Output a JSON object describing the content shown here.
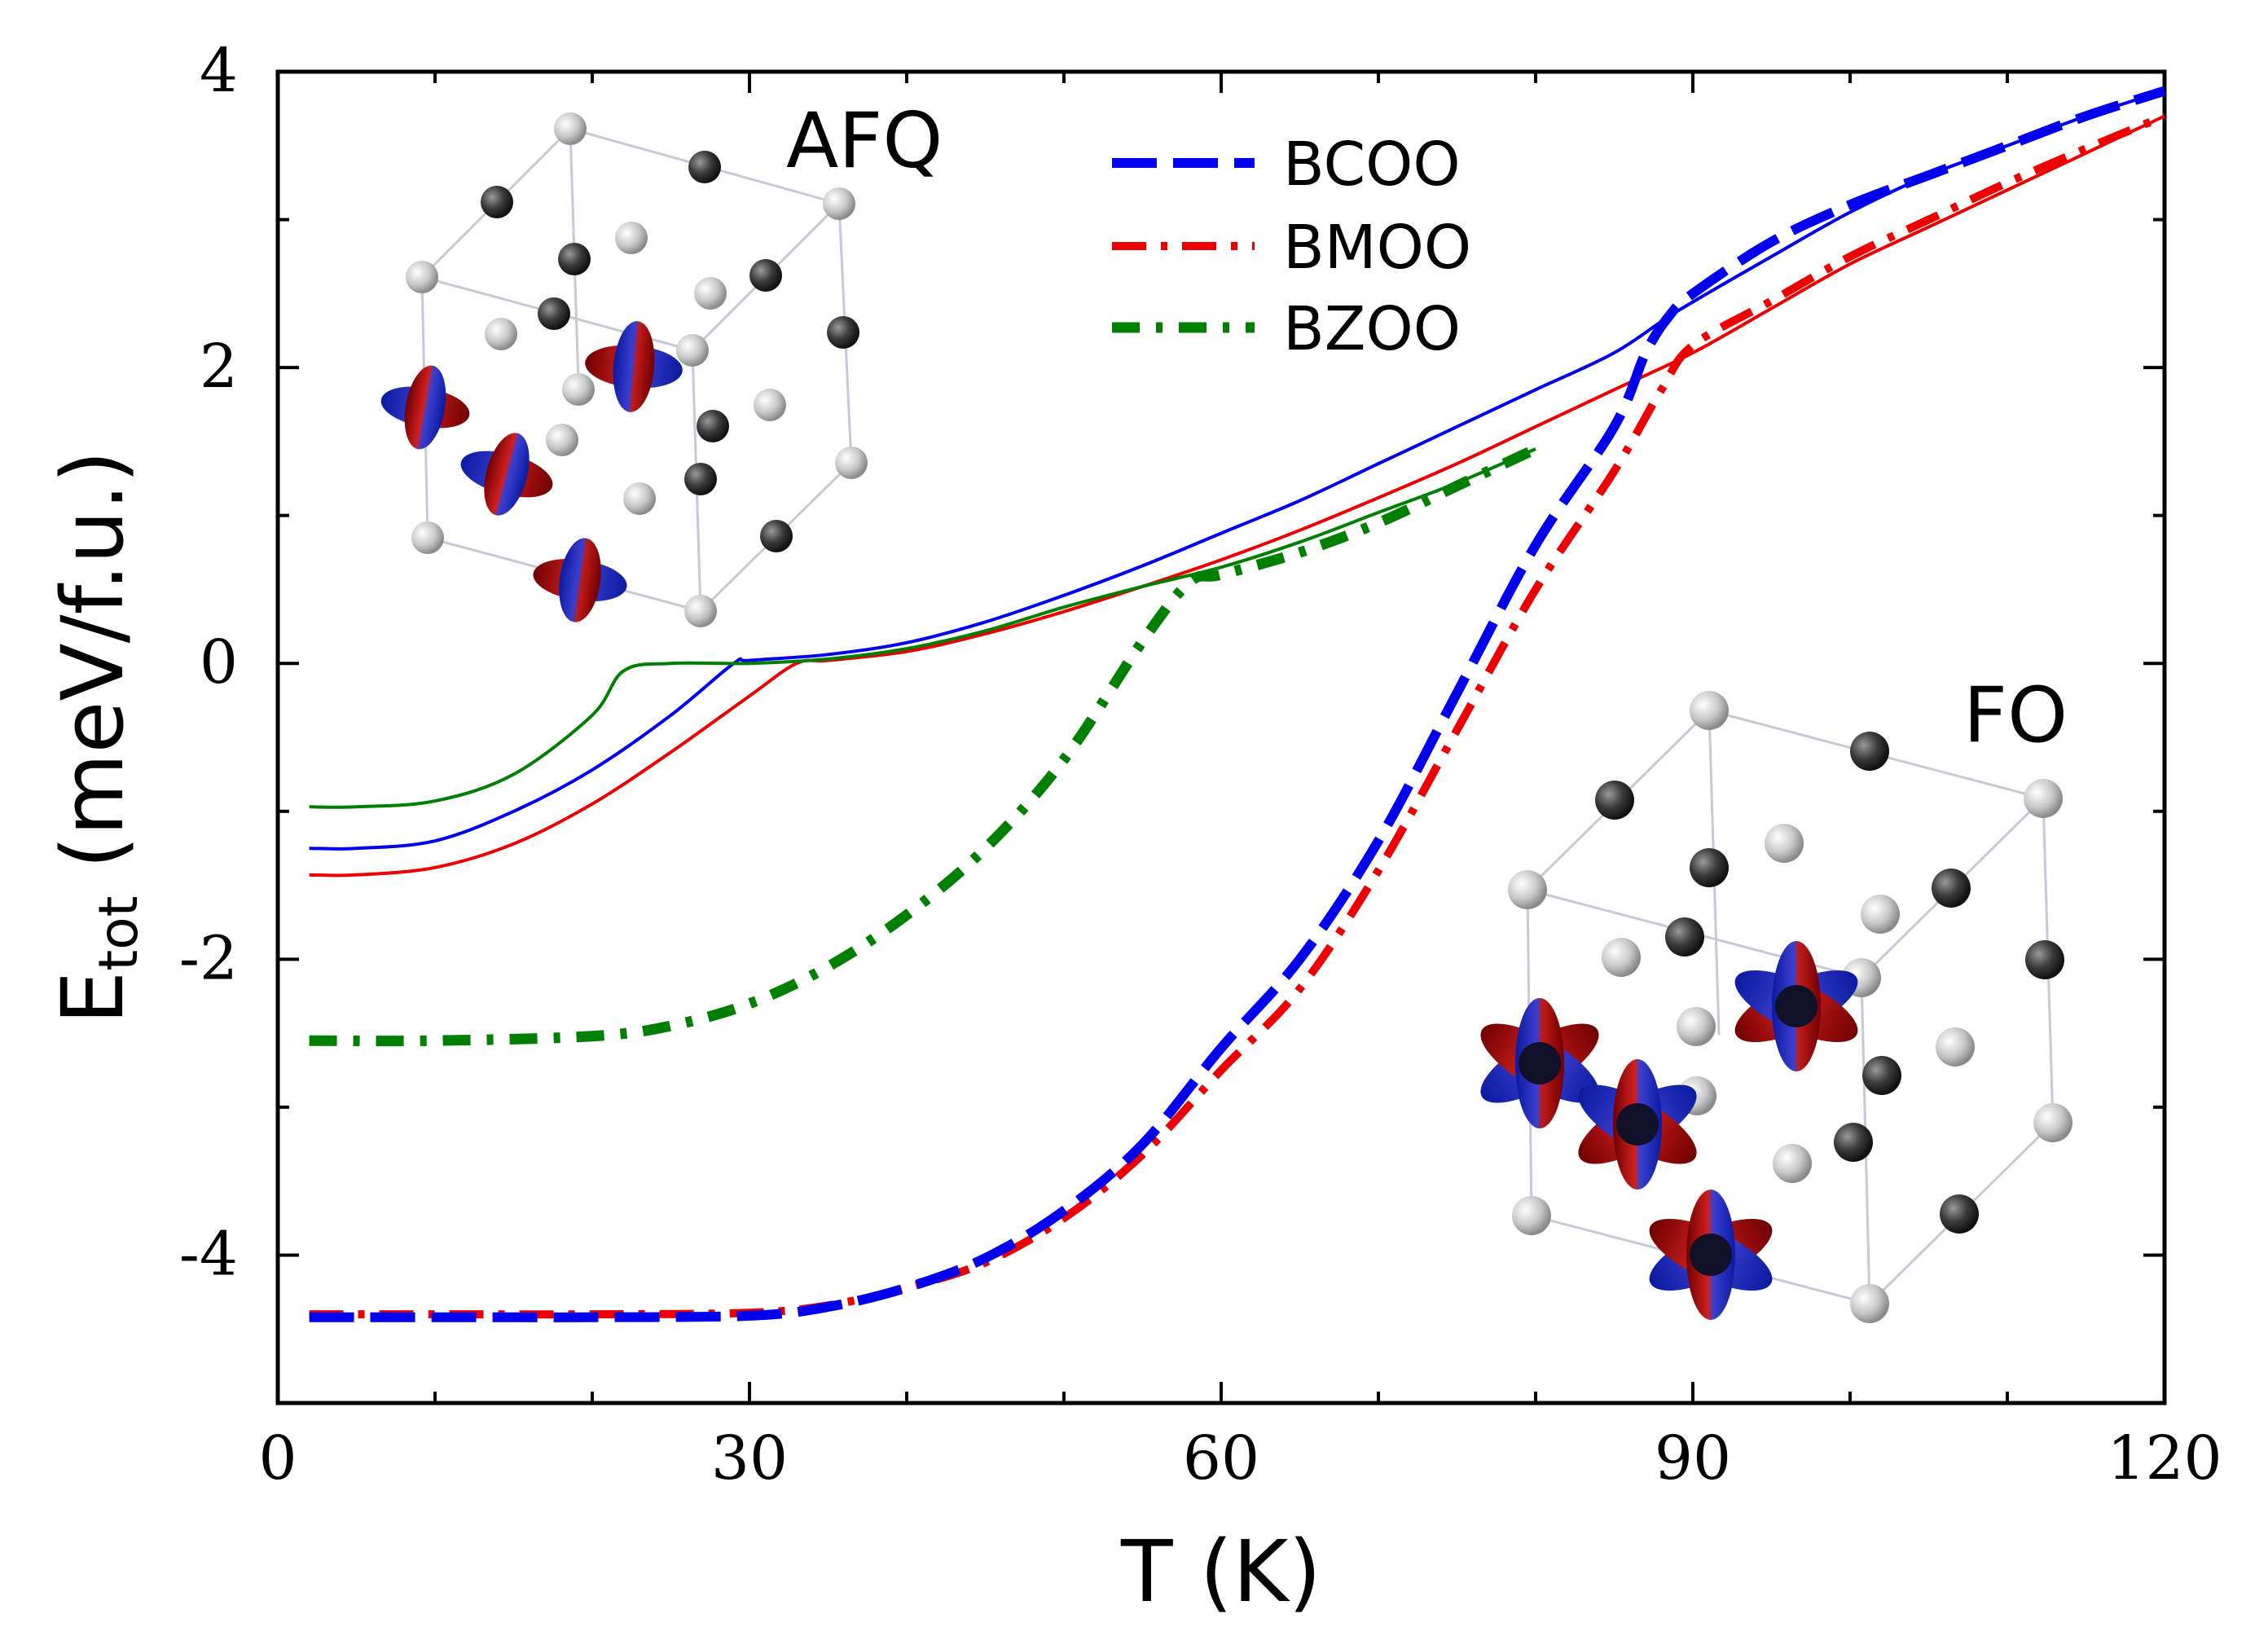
{
  "chart_data": {
    "type": "line",
    "xlabel": "T (K)",
    "ylabel_main": "E",
    "ylabel_sub": "tot",
    "ylabel_units": "(meV/f.u.)",
    "xlim": [
      0,
      120
    ],
    "ylim": [
      -5,
      4
    ],
    "xticks": [
      0,
      30,
      60,
      90,
      120
    ],
    "yticks": [
      -4,
      -2,
      0,
      2,
      4
    ],
    "xtick_labels": [
      "0",
      "30",
      "60",
      "90",
      "120"
    ],
    "ytick_labels": [
      "-4",
      "-2",
      "0",
      "2",
      "4"
    ],
    "grid": false,
    "legend_position": "top-center",
    "annotations": [
      {
        "text": "AFQ",
        "position": "top-left inset"
      },
      {
        "text": "FO",
        "position": "bottom-right inset"
      }
    ],
    "series": [
      {
        "name": "BCOO",
        "color": "#0000ee",
        "style": "dashed",
        "role": "FO",
        "x": [
          2,
          10,
          20,
          30,
          35,
          40,
          45,
          50,
          55,
          60,
          65,
          70,
          75,
          80,
          85,
          87,
          88.5,
          90,
          95,
          100,
          105,
          110,
          115,
          120
        ],
        "y": [
          -4.42,
          -4.42,
          -4.42,
          -4.41,
          -4.35,
          -4.22,
          -4.02,
          -3.7,
          -3.25,
          -2.6,
          -2.0,
          -1.2,
          -0.2,
          0.8,
          1.6,
          2.1,
          2.35,
          2.5,
          2.85,
          3.1,
          3.3,
          3.5,
          3.7,
          3.87
        ]
      },
      {
        "name": "BMOO",
        "color": "#ee0000",
        "style": "dash-dot",
        "role": "FO",
        "x": [
          2,
          10,
          20,
          30,
          35,
          40,
          45,
          50,
          55,
          60,
          65,
          70,
          75,
          80,
          85,
          88,
          90,
          95,
          100,
          105,
          110,
          115,
          120
        ],
        "y": [
          -4.4,
          -4.4,
          -4.4,
          -4.39,
          -4.34,
          -4.22,
          -4.05,
          -3.75,
          -3.32,
          -2.75,
          -2.2,
          -1.4,
          -0.45,
          0.5,
          1.3,
          1.85,
          2.15,
          2.45,
          2.75,
          3.0,
          3.25,
          3.48,
          3.7
        ]
      },
      {
        "name": "BZOO",
        "color": "#008000",
        "style": "dash-dot",
        "role": "FO",
        "x": [
          2,
          10,
          20,
          25,
          30,
          35,
          40,
          45,
          50,
          55,
          58,
          60,
          65,
          70,
          75,
          80
        ],
        "y": [
          -2.55,
          -2.55,
          -2.52,
          -2.45,
          -2.3,
          -2.05,
          -1.7,
          -1.25,
          -0.65,
          0.15,
          0.55,
          0.6,
          0.75,
          0.95,
          1.2,
          1.45
        ]
      },
      {
        "name": "BCOO AFQ",
        "color": "#0000ee",
        "style": "solid",
        "role": "AFQ",
        "x": [
          2,
          5,
          10,
          15,
          20,
          25,
          29,
          30,
          35,
          40,
          45,
          50,
          55,
          60,
          65,
          70,
          75,
          80,
          85,
          89,
          95,
          100,
          105,
          110,
          115,
          120
        ],
        "y": [
          -1.25,
          -1.25,
          -1.2,
          -1.0,
          -0.72,
          -0.35,
          0.0,
          0.02,
          0.06,
          0.14,
          0.28,
          0.46,
          0.66,
          0.88,
          1.1,
          1.35,
          1.6,
          1.85,
          2.1,
          2.38,
          2.75,
          3.05,
          3.3,
          3.5,
          3.7,
          3.87
        ]
      },
      {
        "name": "BMOO AFQ",
        "color": "#ee0000",
        "style": "solid",
        "role": "AFQ",
        "x": [
          2,
          5,
          10,
          15,
          20,
          25,
          30,
          33,
          35,
          40,
          45,
          50,
          55,
          60,
          65,
          70,
          75,
          80,
          85,
          90,
          95,
          100,
          105,
          110,
          115,
          120
        ],
        "y": [
          -1.43,
          -1.43,
          -1.38,
          -1.22,
          -0.95,
          -0.6,
          -0.22,
          0.0,
          0.02,
          0.08,
          0.2,
          0.35,
          0.52,
          0.7,
          0.9,
          1.12,
          1.35,
          1.6,
          1.85,
          2.1,
          2.4,
          2.7,
          2.95,
          3.2,
          3.45,
          3.7
        ]
      },
      {
        "name": "BZOO AFQ",
        "color": "#008000",
        "style": "solid",
        "role": "AFQ",
        "x": [
          2,
          5,
          10,
          15,
          20,
          22,
          25,
          30,
          35,
          40,
          45,
          50,
          55,
          60,
          65,
          70,
          75,
          80
        ],
        "y": [
          -0.97,
          -0.97,
          -0.93,
          -0.75,
          -0.35,
          -0.05,
          0.0,
          0.0,
          0.03,
          0.1,
          0.22,
          0.38,
          0.52,
          0.65,
          0.82,
          1.02,
          1.22,
          1.45
        ]
      }
    ]
  }
}
